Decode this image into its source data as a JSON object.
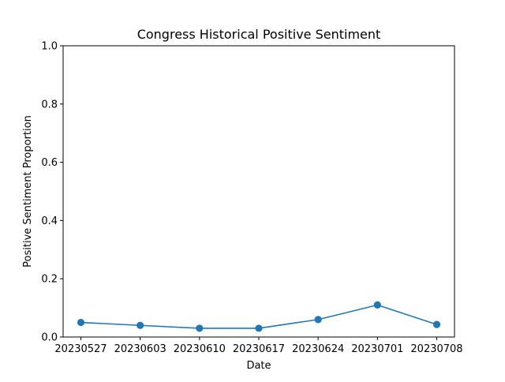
{
  "chart_data": {
    "type": "line",
    "title": "Congress Historical Positive Sentiment",
    "xlabel": "Date",
    "ylabel": "Positive Sentiment Proportion",
    "categories": [
      "20230527",
      "20230603",
      "20230610",
      "20230617",
      "20230624",
      "20230701",
      "20230708"
    ],
    "series": [
      {
        "values": [
          0.05,
          0.04,
          0.03,
          0.03,
          0.06,
          0.11,
          0.043
        ],
        "color": "#1f77b4",
        "marker": "circle"
      }
    ],
    "ylim": [
      0,
      1.0
    ],
    "yticks": [
      "0.0",
      "0.2",
      "0.4",
      "0.6",
      "0.8",
      "1.0"
    ],
    "grid": false,
    "legend": "none"
  }
}
